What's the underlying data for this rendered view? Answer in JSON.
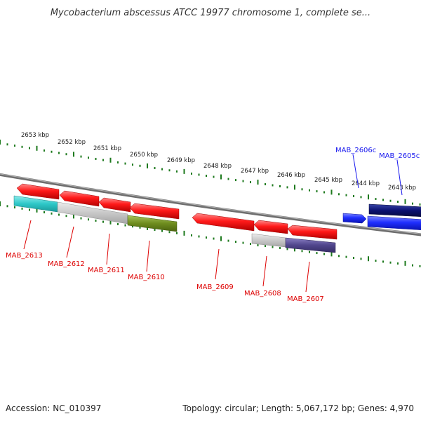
{
  "title": "Mycobacterium abscessus ATCC 19977 chromosome 1, complete se...",
  "footer": {
    "accession": "Accession: NC_010397",
    "summary": "Topology: circular; Length: 5,067,172 bp; Genes: 4,970"
  },
  "scale_ticks": [
    "2653 kbp",
    "2652 kbp",
    "2651 kbp",
    "2650 kbp",
    "2649 kbp",
    "2648 kbp",
    "2647 kbp",
    "2646 kbp",
    "2645 kbp",
    "2644 kbp",
    "2643 kbp"
  ],
  "colors": {
    "forward_gene": "#ff1a1a",
    "reverse_gene": "#1f2fff",
    "reverse_gene_dark": "#0a1070",
    "cyan_feature": "#2ec8c8",
    "gray_feature": "#c8c8c8",
    "olive_feature": "#6e8c1e",
    "purple_feature": "#50458c",
    "backbone": "#777777",
    "tick": "#1e7a1e",
    "label_red": "#dd0000",
    "label_blue": "#1a1aee"
  },
  "gene_labels": [
    {
      "id": "MAB_2613",
      "color": "red"
    },
    {
      "id": "MAB_2612",
      "color": "red"
    },
    {
      "id": "MAB_2611",
      "color": "red"
    },
    {
      "id": "MAB_2610",
      "color": "red"
    },
    {
      "id": "MAB_2609",
      "color": "red"
    },
    {
      "id": "MAB_2608",
      "color": "red"
    },
    {
      "id": "MAB_2607",
      "color": "red"
    },
    {
      "id": "MAB_2606c",
      "color": "blue"
    },
    {
      "id": "MAB_2605c",
      "color": "blue"
    }
  ]
}
